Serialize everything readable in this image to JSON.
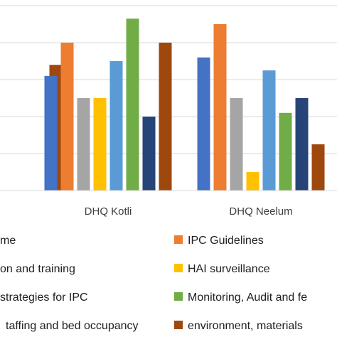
{
  "chart_data": {
    "type": "bar",
    "categories": [
      "",
      "DHQ Kotli",
      "DHQ Neelum"
    ],
    "ylim": [
      0,
      50
    ],
    "grid": true,
    "legend_position": "bottom",
    "series": [
      {
        "name": "me",
        "color": "#4472c4",
        "values": [
          null,
          31,
          36
        ]
      },
      {
        "name": "IPC Guidelines",
        "color": "#ed7d31",
        "values": [
          null,
          40,
          45
        ]
      },
      {
        "name": "",
        "color": "#a5a5a5",
        "values": [
          null,
          25,
          25
        ]
      },
      {
        "name": "HAI surveillance",
        "color": "#ffc000",
        "values": [
          null,
          25,
          5
        ]
      },
      {
        "name": "",
        "color": "#5b9bd5",
        "values": [
          null,
          35,
          32.5
        ]
      },
      {
        "name": "Monitoring, Audit and fe",
        "color": "#70ad47",
        "values": [
          null,
          46.5,
          21
        ]
      },
      {
        "name": "",
        "color": "#264478",
        "values": [
          null,
          20,
          25
        ]
      },
      {
        "name": "environment, materials",
        "color": "#9e480e",
        "values": [
          34,
          40,
          12.5
        ]
      }
    ],
    "legend_extra_labels": [
      {
        "text": "on and training",
        "color": "#a5a5a5"
      },
      {
        "text": "strategies for IPC",
        "color": "#5b9bd5"
      },
      {
        "text": "taffing and bed occupancy",
        "color": "#264478"
      }
    ]
  }
}
